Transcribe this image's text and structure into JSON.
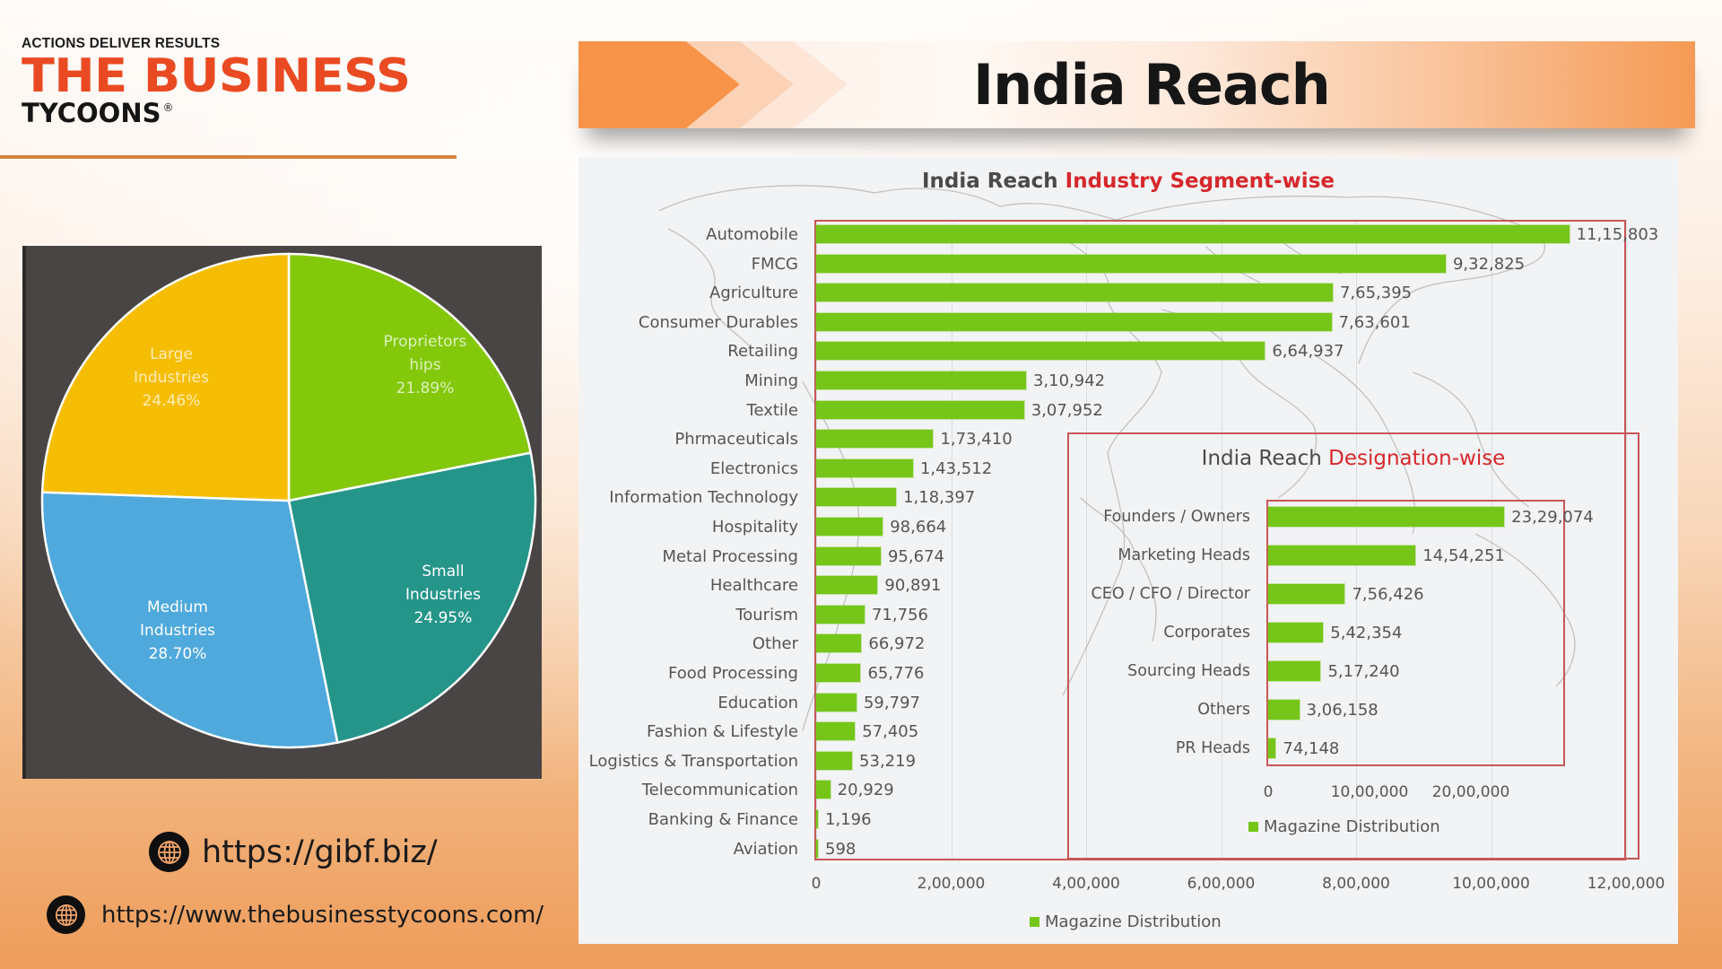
{
  "logo": {
    "tagline": "ACTIONS DELIVER RESULTS",
    "brand_line1": "THE BUSINESS",
    "brand_line2": "TYCOONS",
    "registered_mark": "®"
  },
  "header": {
    "title": "India Reach"
  },
  "colors": {
    "brand_orange": "#ea4a22",
    "bar_green": "#76c61a",
    "frame_red": "#c9555a",
    "title_red": "#d6282c",
    "pie_yellow": "#f5bd04",
    "pie_green": "#84c80c",
    "pie_teal": "#25958a",
    "pie_blue": "#4fa9dc",
    "pie_background": "#4a4545"
  },
  "links": [
    {
      "icon": "globe-icon",
      "text": "https://gibf.biz/"
    },
    {
      "icon": "globe-icon",
      "text": "https://www.thebusinesstycoons.com/"
    }
  ],
  "chart_data": [
    {
      "type": "pie",
      "title": "",
      "categories": [
        "Proprietorships",
        "Small Industries",
        "Medium Industries",
        "Large Industries"
      ],
      "labels": [
        {
          "line1": "Proprietors",
          "line2": "hips",
          "pct": "21.89%"
        },
        {
          "line1": "Small",
          "line2": "Industries",
          "pct": "24.95%"
        },
        {
          "line1": "Medium",
          "line2": "Industries",
          "pct": "28.70%"
        },
        {
          "line1": "Large",
          "line2": "Industries",
          "pct": "24.46%"
        }
      ],
      "values": [
        21.89,
        24.95,
        28.7,
        24.46
      ],
      "colors": [
        "#84c80c",
        "#25958a",
        "#4fa9dc",
        "#f5bd04"
      ],
      "start_angle": "12 o'clock, clockwise"
    },
    {
      "type": "bar",
      "orientation": "horizontal",
      "title_prefix": "India Reach ",
      "title_highlight": "Industry Segment-wise",
      "categories": [
        "Automobile",
        "FMCG",
        "Agriculture",
        "Consumer Durables",
        "Retailing",
        "Mining",
        "Textile",
        "Phrmaceuticals",
        "Electronics",
        "Information Technology",
        "Hospitality",
        "Metal Processing",
        "Healthcare",
        "Tourism",
        "Other",
        "Food Processing",
        "Education",
        "Fashion & Lifestyle",
        "Logistics & Transportation",
        "Telecommunication",
        "Banking & Finance",
        "Aviation"
      ],
      "values": [
        1115803,
        932825,
        765395,
        763601,
        664937,
        310942,
        307952,
        173410,
        143512,
        118397,
        98664,
        95674,
        90891,
        71756,
        66972,
        65776,
        59797,
        57405,
        53219,
        20929,
        1196,
        598
      ],
      "value_labels": [
        "11,15,803",
        "9,32,825",
        "7,65,395",
        "7,63,601",
        "6,64,937",
        "3,10,942",
        "3,07,952",
        "1,73,410",
        "1,43,512",
        "1,18,397",
        "98,664",
        "95,674",
        "90,891",
        "71,756",
        "66,972",
        "65,776",
        "59,797",
        "57,405",
        "53,219",
        "20,929",
        "1,196",
        "598"
      ],
      "xticks": [
        "0",
        "2,00,000",
        "4,00,000",
        "6,00,000",
        "8,00,000",
        "10,00,000",
        "12,00,000"
      ],
      "xlim": [
        0,
        1200000
      ],
      "legend": [
        "Magazine Distribution"
      ],
      "legend_position": "bottom",
      "grid": true
    },
    {
      "type": "bar",
      "orientation": "horizontal",
      "title_prefix": "India Reach ",
      "title_highlight": "Designation-wise",
      "categories": [
        "Founders / Owners",
        "Marketing Heads",
        "CEO / CFO / Director",
        "Corporates",
        "Sourcing Heads",
        "Others",
        "PR Heads"
      ],
      "values": [
        2329074,
        1454251,
        756426,
        542354,
        517240,
        306158,
        74148
      ],
      "value_labels": [
        "23,29,074",
        "14,54,251",
        "7,56,426",
        "5,42,354",
        "5,17,240",
        "3,06,158",
        "74,148"
      ],
      "xticks": [
        "0",
        "10,00,000",
        "20,00,000"
      ],
      "xlim": [
        0,
        2500000
      ],
      "legend": [
        "Magazine Distribution"
      ],
      "legend_position": "bottom",
      "grid": true
    }
  ]
}
